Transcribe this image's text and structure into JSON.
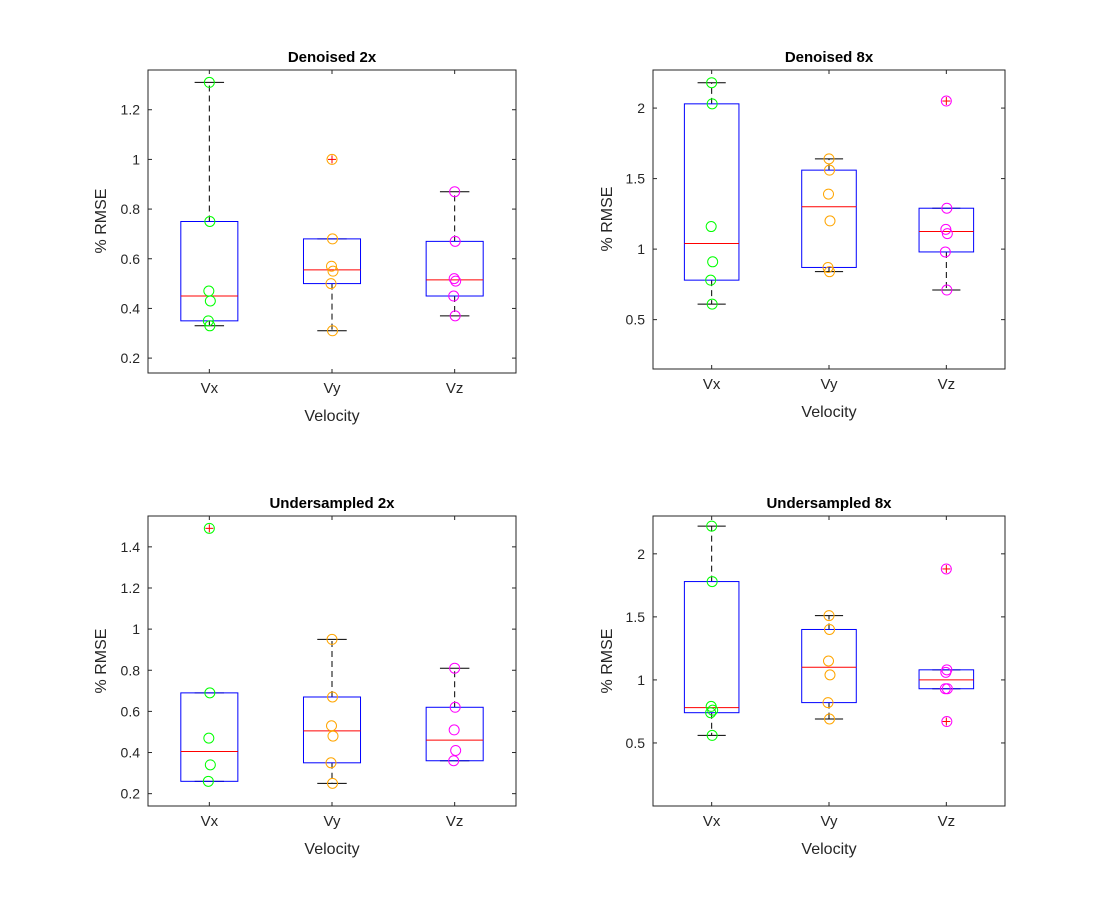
{
  "figure": {
    "background": "#ffffff"
  },
  "colors": {
    "box": "#0000ff",
    "median": "#ff0000",
    "whisker": "#000000",
    "outlier": "#ff0000",
    "axis": "#262626",
    "Vx": "#00ff00",
    "Vy": "#ffa500",
    "Vz": "#ff00ff"
  },
  "chart_data": [
    {
      "type": "boxplot",
      "title": "Denoised 2x",
      "xlabel": "Velocity",
      "ylabel": "% RMSE",
      "ylim": [
        0.14,
        1.36
      ],
      "yticks": [
        0.2,
        0.4,
        0.6,
        0.8,
        1,
        1.2
      ],
      "ytick_labels": [
        "0.2",
        "0.4",
        "0.6",
        "0.8",
        "1",
        "1.2"
      ],
      "categories": [
        "Vx",
        "Vy",
        "Vz"
      ],
      "boxes": [
        {
          "q1": 0.35,
          "median": 0.45,
          "q3": 0.75,
          "whisker_low": 0.33,
          "whisker_high": 1.31,
          "outliers": [],
          "points": [
            1.31,
            0.75,
            0.47,
            0.43,
            0.35,
            0.33
          ]
        },
        {
          "q1": 0.5,
          "median": 0.555,
          "q3": 0.68,
          "whisker_low": 0.31,
          "whisker_high": 0.68,
          "outliers": [
            1.0
          ],
          "points": [
            1.0,
            0.68,
            0.57,
            0.55,
            0.5,
            0.31
          ]
        },
        {
          "q1": 0.45,
          "median": 0.515,
          "q3": 0.67,
          "whisker_low": 0.37,
          "whisker_high": 0.87,
          "outliers": [],
          "points": [
            0.87,
            0.67,
            0.52,
            0.51,
            0.45,
            0.37
          ]
        }
      ]
    },
    {
      "type": "boxplot",
      "title": "Denoised 8x",
      "xlabel": "Velocity",
      "ylabel": "% RMSE",
      "ylim": [
        0.15,
        2.27
      ],
      "yticks": [
        0.5,
        1,
        1.5,
        2
      ],
      "ytick_labels": [
        "0.5",
        "1",
        "1.5",
        "2"
      ],
      "categories": [
        "Vx",
        "Vy",
        "Vz"
      ],
      "boxes": [
        {
          "q1": 0.78,
          "median": 1.04,
          "q3": 2.03,
          "whisker_low": 0.61,
          "whisker_high": 2.18,
          "outliers": [],
          "points": [
            2.18,
            2.03,
            1.16,
            0.91,
            0.78,
            0.61
          ]
        },
        {
          "q1": 0.87,
          "median": 1.3,
          "q3": 1.56,
          "whisker_low": 0.84,
          "whisker_high": 1.64,
          "outliers": [],
          "points": [
            1.64,
            1.56,
            1.39,
            1.2,
            0.87,
            0.84
          ]
        },
        {
          "q1": 0.98,
          "median": 1.125,
          "q3": 1.29,
          "whisker_low": 0.71,
          "whisker_high": 1.29,
          "outliers": [
            2.05
          ],
          "points": [
            2.05,
            1.29,
            1.14,
            1.11,
            0.98,
            0.71
          ]
        }
      ]
    },
    {
      "type": "boxplot",
      "title": "Undersampled 2x",
      "xlabel": "Velocity",
      "ylabel": "% RMSE",
      "ylim": [
        0.14,
        1.55
      ],
      "yticks": [
        0.2,
        0.4,
        0.6,
        0.8,
        1,
        1.2,
        1.4
      ],
      "ytick_labels": [
        "0.2",
        "0.4",
        "0.6",
        "0.8",
        "1",
        "1.2",
        "1.4"
      ],
      "categories": [
        "Vx",
        "Vy",
        "Vz"
      ],
      "boxes": [
        {
          "q1": 0.26,
          "median": 0.405,
          "q3": 0.69,
          "whisker_low": 0.26,
          "whisker_high": 0.69,
          "outliers": [
            1.49
          ],
          "points": [
            1.49,
            0.69,
            0.47,
            0.34,
            0.26
          ]
        },
        {
          "q1": 0.35,
          "median": 0.505,
          "q3": 0.67,
          "whisker_low": 0.25,
          "whisker_high": 0.95,
          "outliers": [],
          "points": [
            0.95,
            0.67,
            0.53,
            0.48,
            0.35,
            0.25
          ]
        },
        {
          "q1": 0.36,
          "median": 0.46,
          "q3": 0.62,
          "whisker_low": 0.36,
          "whisker_high": 0.81,
          "outliers": [],
          "points": [
            0.81,
            0.62,
            0.51,
            0.41,
            0.36
          ]
        }
      ]
    },
    {
      "type": "boxplot",
      "title": "Undersampled 8x",
      "xlabel": "Velocity",
      "ylabel": "% RMSE",
      "ylim": [
        0.0,
        2.3
      ],
      "yticks": [
        0.5,
        1,
        1.5,
        2
      ],
      "ytick_labels": [
        "0.5",
        "1",
        "1.5",
        "2"
      ],
      "categories": [
        "Vx",
        "Vy",
        "Vz"
      ],
      "boxes": [
        {
          "q1": 0.74,
          "median": 0.78,
          "q3": 1.78,
          "whisker_low": 0.56,
          "whisker_high": 2.22,
          "outliers": [],
          "points": [
            2.22,
            1.78,
            0.79,
            0.76,
            0.74,
            0.56
          ]
        },
        {
          "q1": 0.82,
          "median": 1.1,
          "q3": 1.4,
          "whisker_low": 0.69,
          "whisker_high": 1.51,
          "outliers": [],
          "points": [
            1.51,
            1.4,
            1.15,
            1.04,
            0.82,
            0.69
          ]
        },
        {
          "q1": 0.93,
          "median": 1.0,
          "q3": 1.08,
          "whisker_low": 0.93,
          "whisker_high": 1.08,
          "outliers": [
            1.88,
            0.67
          ],
          "points": [
            1.88,
            1.08,
            1.06,
            0.93,
            0.93,
            0.67
          ]
        }
      ]
    }
  ]
}
